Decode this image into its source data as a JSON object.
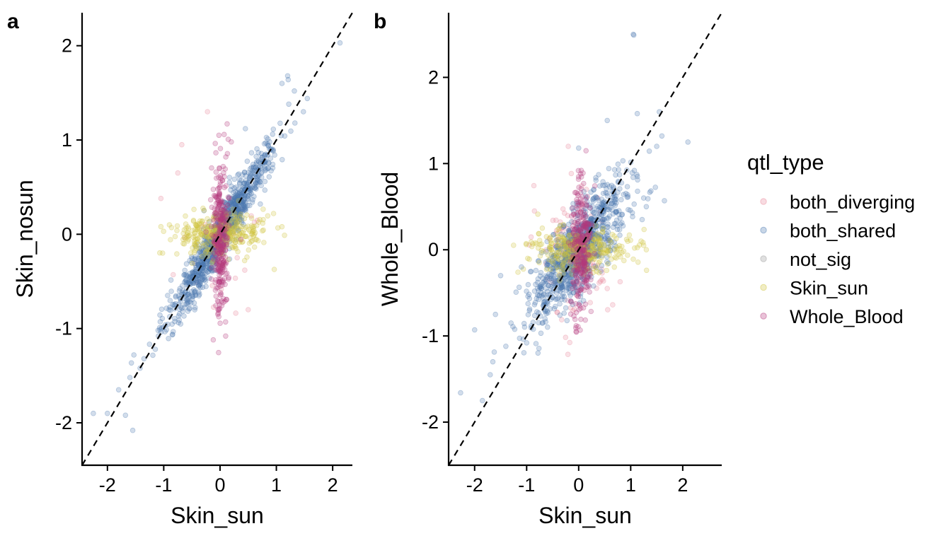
{
  "legend": {
    "title": "qtl_type",
    "placement": "right",
    "entries": [
      {
        "name": "both_diverging",
        "color": "#e9879a"
      },
      {
        "name": "both_shared",
        "color": "#4a78b0"
      },
      {
        "name": "not_sig",
        "color": "#999999"
      },
      {
        "name": "Skin_sun",
        "color": "#cfc43c"
      },
      {
        "name": "Whole_Blood",
        "color": "#b5387d"
      }
    ]
  },
  "chart_data": [
    {
      "panel": "a",
      "type": "scatter",
      "xlabel": "Skin_sun",
      "ylabel": "Skin_nosun",
      "xlim": [
        -2.45,
        2.35
      ],
      "ylim": [
        -2.45,
        2.35
      ],
      "xticks": [
        -2,
        -1,
        0,
        1,
        2
      ],
      "yticks": [
        -2,
        -1,
        0,
        1,
        2
      ],
      "reference_line": "y = x (dashed)",
      "grid": false,
      "point_opacity": 0.25,
      "series_shape": [
        {
          "name": "both_shared",
          "shape": "diagonal",
          "n": 950,
          "slope": 1.0,
          "sd_along": 0.45,
          "sd_across": 0.09
        },
        {
          "name": "Skin_sun",
          "shape": "horizontal",
          "n": 320,
          "center": [
            0.0,
            0.0
          ],
          "sd_x": 0.42,
          "sd_y": 0.12
        },
        {
          "name": "Whole_Blood",
          "shape": "vertical",
          "n": 300,
          "center": [
            0.0,
            0.0
          ],
          "sd_x": 0.07,
          "sd_y": 0.4
        },
        {
          "name": "both_diverging",
          "shape": "scattered",
          "n": 30,
          "center": [
            0.0,
            0.0
          ],
          "sd_x": 0.35,
          "sd_y": 0.45
        }
      ],
      "outliers": [
        {
          "series": "both_shared",
          "x": 2.13,
          "y": 2.03
        },
        {
          "series": "both_shared",
          "x": 1.2,
          "y": 1.68
        },
        {
          "series": "both_shared",
          "x": 1.21,
          "y": 1.64
        },
        {
          "series": "both_shared",
          "x": 1.55,
          "y": 1.44
        },
        {
          "series": "both_shared",
          "x": 1.32,
          "y": 1.52
        },
        {
          "series": "both_shared",
          "x": 1.48,
          "y": 1.3
        },
        {
          "series": "both_shared",
          "x": 1.22,
          "y": 1.38
        },
        {
          "series": "both_shared",
          "x": 1.1,
          "y": 1.6
        },
        {
          "series": "both_shared",
          "x": 1.33,
          "y": 1.18
        },
        {
          "series": "both_shared",
          "x": -2.25,
          "y": -1.9
        },
        {
          "series": "both_shared",
          "x": -2.0,
          "y": -1.9
        },
        {
          "series": "both_shared",
          "x": -1.68,
          "y": -1.92
        },
        {
          "series": "both_shared",
          "x": -1.55,
          "y": -2.08
        },
        {
          "series": "both_shared",
          "x": -1.8,
          "y": -1.65
        },
        {
          "series": "both_shared",
          "x": -1.6,
          "y": -1.52
        },
        {
          "series": "both_shared",
          "x": -1.53,
          "y": -1.28
        },
        {
          "series": "both_shared",
          "x": -1.42,
          "y": -1.42
        },
        {
          "series": "both_shared",
          "x": -1.35,
          "y": -1.32
        },
        {
          "series": "both_shared",
          "x": -1.15,
          "y": -1.22
        },
        {
          "series": "both_shared",
          "x": -1.1,
          "y": -1.02
        },
        {
          "series": "both_shared",
          "x": 0.45,
          "y": 1.12
        },
        {
          "series": "Skin_sun",
          "x": 1.1,
          "y": 0.08
        },
        {
          "series": "Skin_sun",
          "x": -1.02,
          "y": -0.2
        },
        {
          "series": "Skin_sun",
          "x": -0.9,
          "y": 0.1
        },
        {
          "series": "Skin_sun",
          "x": 0.95,
          "y": 0.22
        },
        {
          "series": "Whole_Blood",
          "x": -0.02,
          "y": 1.05
        },
        {
          "series": "Whole_Blood",
          "x": 0.1,
          "y": -1.08
        },
        {
          "series": "Whole_Blood",
          "x": -0.12,
          "y": -1.12
        },
        {
          "series": "Whole_Blood",
          "x": 0.2,
          "y": 0.98
        },
        {
          "series": "both_diverging",
          "x": -0.68,
          "y": 0.95
        },
        {
          "series": "both_diverging",
          "x": -1.05,
          "y": 0.38
        },
        {
          "series": "both_diverging",
          "x": -0.75,
          "y": 0.65
        },
        {
          "series": "both_diverging",
          "x": 0.5,
          "y": -0.8
        }
      ]
    },
    {
      "panel": "b",
      "type": "scatter",
      "xlabel": "Skin_sun",
      "ylabel": "Whole_Blood",
      "xlim": [
        -2.5,
        2.75
      ],
      "ylim": [
        -2.5,
        2.75
      ],
      "xticks": [
        -2,
        -1,
        0,
        1,
        2
      ],
      "yticks": [
        -2,
        -1,
        0,
        1,
        2
      ],
      "reference_line": "y = x (dashed)",
      "grid": false,
      "point_opacity": 0.25,
      "series_shape": [
        {
          "name": "both_shared",
          "shape": "diagonal",
          "n": 900,
          "slope": 0.8,
          "sd_along": 0.45,
          "sd_across": 0.18
        },
        {
          "name": "Skin_sun",
          "shape": "horizontal",
          "n": 300,
          "center": [
            0.0,
            0.0
          ],
          "sd_x": 0.45,
          "sd_y": 0.12
        },
        {
          "name": "Whole_Blood",
          "shape": "vertical",
          "n": 280,
          "center": [
            0.05,
            0.0
          ],
          "sd_x": 0.09,
          "sd_y": 0.38
        },
        {
          "name": "both_diverging",
          "shape": "scattered",
          "n": 110,
          "center": [
            -0.05,
            0.0
          ],
          "sd_x": 0.35,
          "sd_y": 0.38
        }
      ],
      "outliers": [
        {
          "series": "both_shared",
          "x": 1.05,
          "y": 2.5
        },
        {
          "series": "both_shared",
          "x": 1.06,
          "y": 2.49
        },
        {
          "series": "both_shared",
          "x": 2.1,
          "y": 1.25
        },
        {
          "series": "both_shared",
          "x": 1.55,
          "y": 1.6
        },
        {
          "series": "both_shared",
          "x": 1.5,
          "y": 1.2
        },
        {
          "series": "both_shared",
          "x": 1.6,
          "y": 1.32
        },
        {
          "series": "both_shared",
          "x": 0.55,
          "y": 1.5
        },
        {
          "series": "both_shared",
          "x": 1.25,
          "y": 0.6
        },
        {
          "series": "both_shared",
          "x": 1.3,
          "y": 0.5
        },
        {
          "series": "both_shared",
          "x": 1.22,
          "y": 0.35
        },
        {
          "series": "both_shared",
          "x": -2.27,
          "y": -1.66
        },
        {
          "series": "both_shared",
          "x": -1.85,
          "y": -1.75
        },
        {
          "series": "both_shared",
          "x": -1.7,
          "y": -1.45
        },
        {
          "series": "both_shared",
          "x": -1.65,
          "y": -1.3
        },
        {
          "series": "both_shared",
          "x": -2.0,
          "y": -0.93
        },
        {
          "series": "both_shared",
          "x": -1.6,
          "y": -0.75
        },
        {
          "series": "both_shared",
          "x": -1.4,
          "y": -1.12
        },
        {
          "series": "both_shared",
          "x": -1.5,
          "y": -0.3
        },
        {
          "series": "both_shared",
          "x": -1.1,
          "y": -0.2
        },
        {
          "series": "both_shared",
          "x": -1.0,
          "y": -1.08
        },
        {
          "series": "both_shared",
          "x": -1.3,
          "y": -0.85
        },
        {
          "series": "both_shared",
          "x": 0.0,
          "y": 1.18
        },
        {
          "series": "Skin_sun",
          "x": 1.25,
          "y": 0.05
        },
        {
          "series": "Skin_sun",
          "x": 1.3,
          "y": 0.0
        },
        {
          "series": "Skin_sun",
          "x": 1.2,
          "y": 0.1
        },
        {
          "series": "Skin_sun",
          "x": -0.98,
          "y": -0.1
        },
        {
          "series": "Whole_Blood",
          "x": -0.05,
          "y": -0.95
        },
        {
          "series": "Whole_Blood",
          "x": 0.05,
          "y": 0.92
        },
        {
          "series": "both_diverging",
          "x": -0.2,
          "y": 1.2
        },
        {
          "series": "both_diverging",
          "x": -0.85,
          "y": 0.45
        },
        {
          "series": "both_diverging",
          "x": 0.55,
          "y": -0.45
        }
      ]
    }
  ]
}
